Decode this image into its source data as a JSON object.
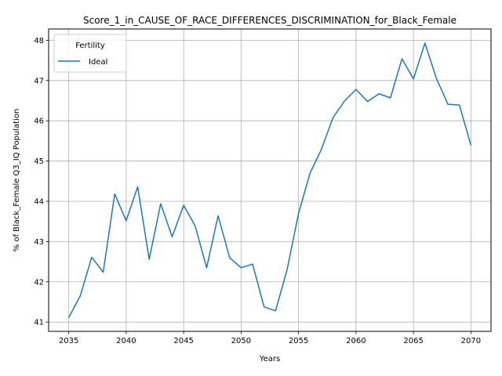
{
  "chart_data": {
    "type": "line",
    "title": "Score_1_in_CAUSE_OF_RACE_DIFFERENCES_DISCRIMINATION_for_Black_Female",
    "xlabel": "Years",
    "ylabel": "% of Black_Female Q3_IQ Population",
    "xlim": [
      2033.25,
      2071.75
    ],
    "ylim": [
      40.77,
      48.28
    ],
    "xticks": [
      2035,
      2040,
      2045,
      2050,
      2055,
      2060,
      2065,
      2070
    ],
    "yticks": [
      41,
      42,
      43,
      44,
      45,
      46,
      47,
      48
    ],
    "grid": true,
    "legend": {
      "title": "Fertility",
      "placement": "top-left"
    },
    "x": [
      2035,
      2036,
      2037,
      2038,
      2039,
      2040,
      2041,
      2042,
      2043,
      2044,
      2045,
      2046,
      2047,
      2048,
      2049,
      2050,
      2051,
      2052,
      2053,
      2054,
      2055,
      2056,
      2057,
      2058,
      2059,
      2060,
      2061,
      2062,
      2063,
      2064,
      2065,
      2066,
      2067,
      2068,
      2069,
      2070
    ],
    "series": [
      {
        "name": "Ideal",
        "color": "#1f77b4",
        "values": [
          41.11,
          41.65,
          42.61,
          42.24,
          44.18,
          43.52,
          44.36,
          42.56,
          43.94,
          43.12,
          43.9,
          43.39,
          42.35,
          43.64,
          42.6,
          42.35,
          42.44,
          41.38,
          41.28,
          42.3,
          43.7,
          44.7,
          45.3,
          46.08,
          46.49,
          46.78,
          46.48,
          46.67,
          46.57,
          47.54,
          47.04,
          47.93,
          47.05,
          46.41,
          46.39,
          45.39
        ]
      }
    ]
  }
}
